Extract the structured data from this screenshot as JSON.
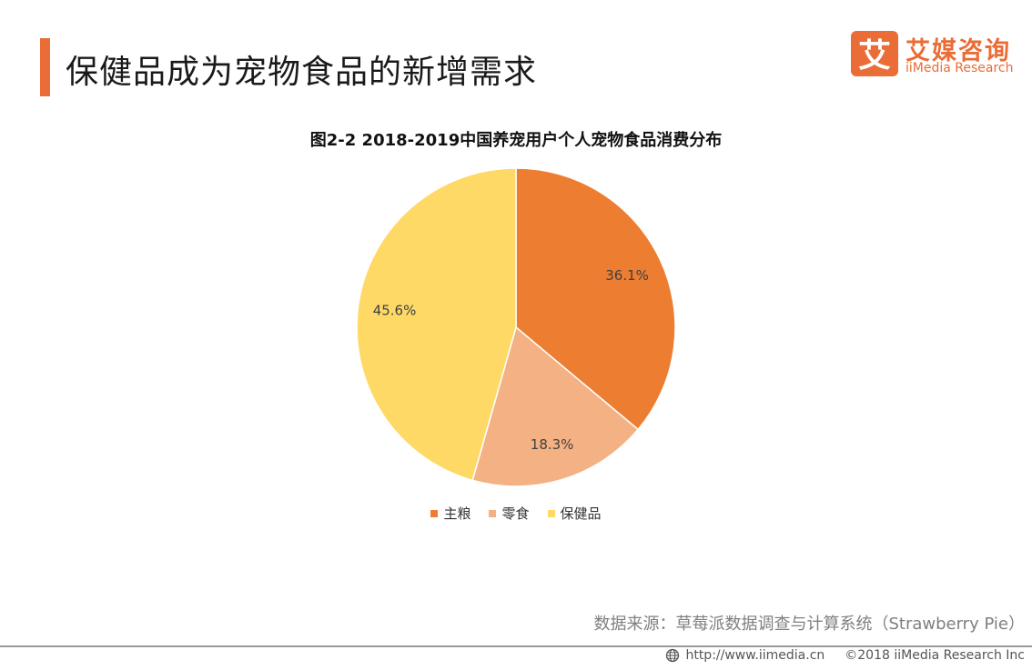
{
  "header": {
    "title": "保健品成为宠物食品的新增需求",
    "accent_color": "#ea6c36"
  },
  "logo": {
    "mark_char": "艾",
    "name_cn": "艾媒咨询",
    "name_en": "iiMedia Research",
    "color": "#ea6c36"
  },
  "chart_data": {
    "type": "pie",
    "title": "图2-2  2018-2019中国养宠用户个人宠物食品消费分布",
    "categories": [
      "主粮",
      "零食",
      "保健品"
    ],
    "values": [
      36.1,
      18.3,
      45.6
    ],
    "labels": [
      "36.1%",
      "18.3%",
      "45.6%"
    ],
    "colors": [
      "#ed7d31",
      "#f4b183",
      "#ffd966"
    ],
    "start_angle_deg": 0,
    "direction": "clockwise",
    "legend_position": "bottom"
  },
  "source": "数据来源：草莓派数据调查与计算系统（Strawberry Pie）",
  "footer": {
    "url": "http://www.iimedia.cn",
    "copyright": "©2018  iiMedia Research  Inc"
  }
}
